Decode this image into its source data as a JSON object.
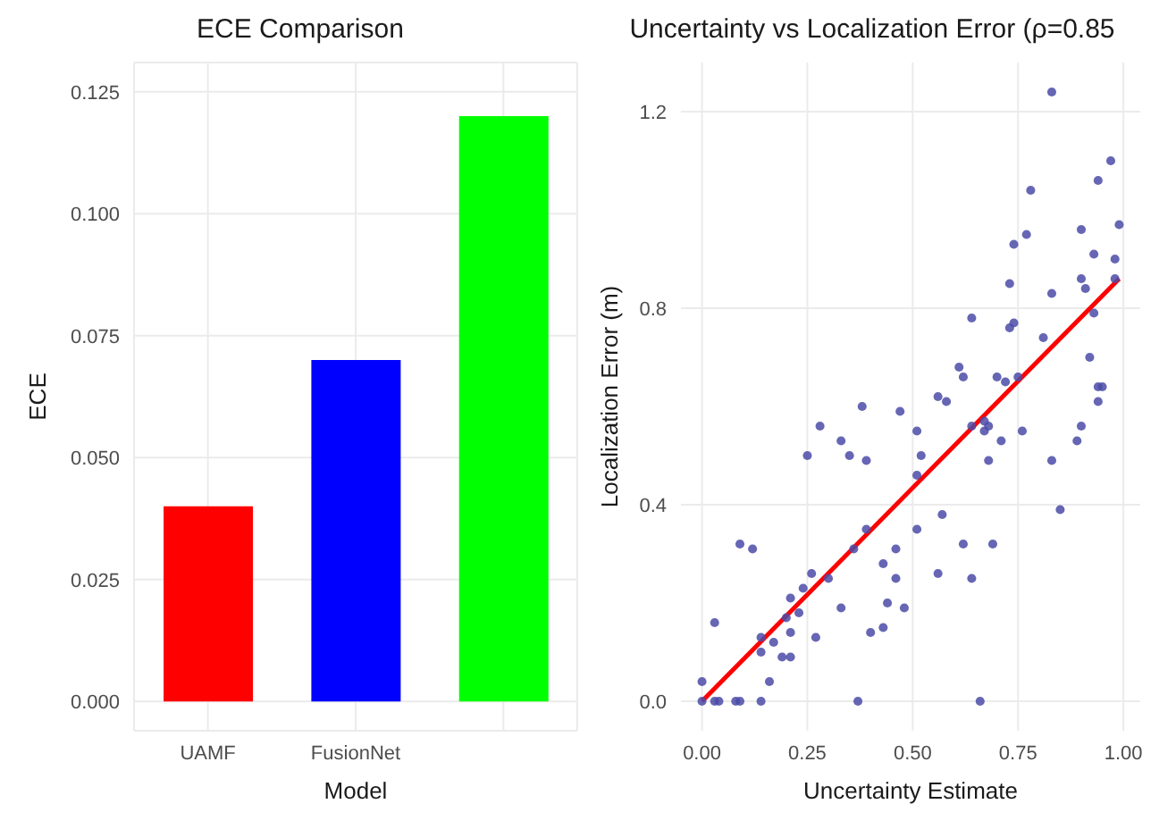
{
  "chart_data": [
    {
      "type": "bar",
      "title": "ECE Comparison",
      "xlabel": "Model",
      "ylabel": "ECE",
      "categories": [
        "UAMF",
        "FusionNet",
        null
      ],
      "values": [
        0.04,
        0.07,
        0.12
      ],
      "colors": [
        "#ff0000",
        "#0000ff",
        "#00ff00"
      ],
      "ylim": [
        -0.006,
        0.131
      ],
      "yticks": [
        {
          "value": 0,
          "label": "0.000"
        },
        0.025,
        {
          "value": 0.05,
          "label": "0.050"
        },
        0.075,
        {
          "value": 0.1,
          "label": "0.100"
        },
        0.125
      ],
      "grid": true,
      "legend": false
    },
    {
      "type": "scatter",
      "title": "Uncertainty vs Localization Error (ρ=0.85",
      "xlabel": "Uncertainty Estimate",
      "ylabel": "Localization Error (m)",
      "xlim": [
        -0.05,
        1.04
      ],
      "ylim": [
        -0.06,
        1.3
      ],
      "xticks": [
        {
          "value": 0,
          "label": "0.00"
        },
        0.25,
        {
          "value": 0.5,
          "label": "0.50"
        },
        0.75,
        {
          "value": 1,
          "label": "1.00"
        }
      ],
      "yticks": [
        {
          "value": 0,
          "label": "0.0"
        },
        0.4,
        0.8,
        1.2
      ],
      "grid": true,
      "legend": false,
      "series": [
        {
          "type": "scatter",
          "color": "#4b4ba8",
          "marker": "circle",
          "x": [
            0.83,
            0.97,
            0.94,
            0.78,
            0.99,
            0.9,
            0.77,
            0.74,
            0.93,
            0.98,
            0.9,
            0.98,
            0.91,
            0.73,
            0.83,
            0.93,
            0.64,
            0.74,
            0.73,
            0.81,
            0.92,
            0.61,
            0.62,
            0.7,
            0.72,
            0.75,
            0.94,
            0.95,
            0.94,
            0.38,
            0.56,
            0.58,
            0.47,
            0.28,
            0.51,
            0.64,
            0.67,
            0.68,
            0.67,
            0.76,
            0.71,
            0.9,
            0.89,
            0.83,
            0.85,
            0.68,
            0.33,
            0.35,
            0.25,
            0.39,
            0.52,
            0.51,
            0.39,
            0.51,
            0.57,
            0.62,
            0.69,
            0.46,
            0.36,
            0.43,
            0.26,
            0.3,
            0.46,
            0.24,
            0.21,
            0.56,
            0.64,
            0.44,
            0.48,
            0.23,
            0.33,
            0.2,
            0.21,
            0.4,
            0.43,
            0.27,
            0.14,
            0.14,
            0.17,
            0.19,
            0.21,
            0.09,
            0.12,
            0.03,
            0.16,
            0.0,
            0.0,
            0.03,
            0.04,
            0.08,
            0.09,
            0.14,
            0.37,
            0.66
          ],
          "values": [
            1.24,
            1.1,
            1.06,
            1.04,
            0.97,
            0.96,
            0.95,
            0.93,
            0.91,
            0.9,
            0.86,
            0.86,
            0.84,
            0.85,
            0.83,
            0.79,
            0.78,
            0.77,
            0.76,
            0.74,
            0.7,
            0.68,
            0.66,
            0.66,
            0.65,
            0.66,
            0.64,
            0.64,
            0.61,
            0.6,
            0.62,
            0.61,
            0.59,
            0.56,
            0.55,
            0.56,
            0.55,
            0.56,
            0.57,
            0.55,
            0.53,
            0.56,
            0.53,
            0.49,
            0.39,
            0.49,
            0.53,
            0.5,
            0.5,
            0.49,
            0.5,
            0.46,
            0.35,
            0.35,
            0.38,
            0.32,
            0.32,
            0.31,
            0.31,
            0.28,
            0.26,
            0.25,
            0.25,
            0.23,
            0.21,
            0.26,
            0.25,
            0.2,
            0.19,
            0.18,
            0.19,
            0.17,
            0.14,
            0.14,
            0.15,
            0.13,
            0.13,
            0.1,
            0.12,
            0.09,
            0.09,
            0.32,
            0.31,
            0.16,
            0.04,
            0.04,
            0.0,
            0.0,
            0.0,
            0.0,
            0.0,
            0.0,
            0.0,
            0.0
          ]
        },
        {
          "type": "line",
          "color": "#ff0000",
          "x": [
            0.0,
            0.99
          ],
          "values": [
            0.0,
            0.86
          ]
        }
      ]
    }
  ]
}
